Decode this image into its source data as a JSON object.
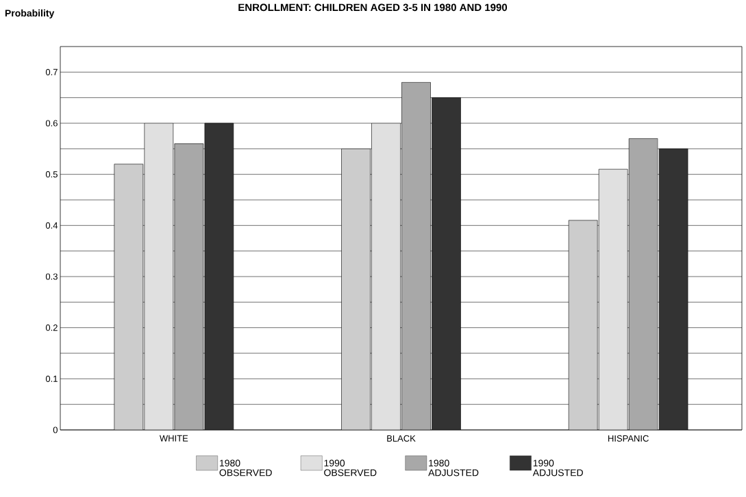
{
  "chart_data": {
    "type": "bar",
    "title": "ENROLLMENT: CHILDREN AGED 3-5 IN 1980 AND 1990",
    "ylabel": "Probability",
    "categories": [
      "WHITE",
      "BLACK",
      "HISPANIC"
    ],
    "series": [
      {
        "name": "1980 OBSERVED",
        "color": "#cccccc",
        "values": [
          0.52,
          0.55,
          0.41
        ]
      },
      {
        "name": "1990 OBSERVED",
        "color": "#e0e0e0",
        "values": [
          0.6,
          0.6,
          0.51
        ]
      },
      {
        "name": "1980 ADJUSTED",
        "color": "#a8a8a8",
        "values": [
          0.56,
          0.68,
          0.57
        ]
      },
      {
        "name": "1990 ADJUSTED",
        "color": "#333333",
        "values": [
          0.6,
          0.65,
          0.55
        ]
      }
    ],
    "ylim": [
      0,
      0.75
    ],
    "yticks": [
      0,
      {
        "value": 0.05,
        "label": null
      },
      0.1,
      {
        "value": 0.15,
        "label": null
      },
      0.2,
      {
        "value": 0.25,
        "label": null
      },
      0.3,
      {
        "value": 0.35,
        "label": null
      },
      0.4,
      {
        "value": 0.45,
        "label": null
      },
      0.5,
      {
        "value": 0.55,
        "label": null
      },
      0.6,
      {
        "value": 0.65,
        "label": null
      },
      0.7
    ],
    "grid": "y",
    "legend": "bottom"
  }
}
